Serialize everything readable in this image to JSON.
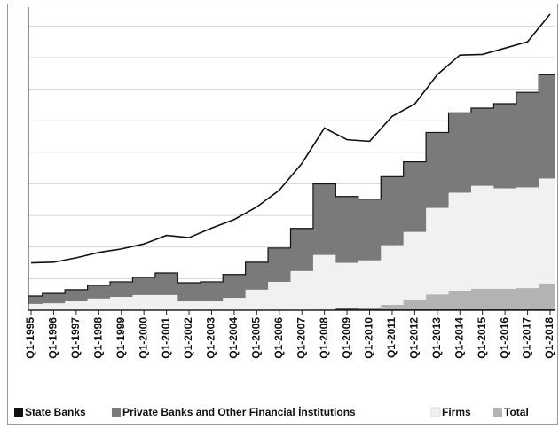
{
  "chart_data": {
    "type": "stacked_step_area",
    "categories": [
      "Q1-1995",
      "Q1-1996",
      "Q1-1997",
      "Q1-1998",
      "Q1-1999",
      "Q1-2000",
      "Q1-2001",
      "Q1-2002",
      "Q1-2003",
      "Q1-2004",
      "Q1-2005",
      "Q1-2006",
      "Q1-2007",
      "Q1-2008",
      "Q1-2009",
      "Q1-2010",
      "Q1-2011",
      "Q1-2012",
      "Q1-2013",
      "Q1-2014",
      "Q1-2015",
      "Q1-2016",
      "Q1-2017",
      "Q1-2018"
    ],
    "series": [
      {
        "name": "State Banks",
        "color": "#111111",
        "values": [
          0,
          0,
          0,
          0,
          0,
          0,
          0,
          0,
          0,
          0,
          0,
          0,
          0,
          0.02,
          0.05,
          0.04,
          0.03,
          0.03,
          0.03,
          0.03,
          0.03,
          0.03,
          0.03,
          0.03
        ]
      },
      {
        "name": "Total",
        "color": "#b3b3b3",
        "values": [
          0,
          0,
          0,
          0,
          0,
          0,
          0,
          0,
          0,
          0,
          0,
          0,
          0,
          0,
          0,
          0.01,
          0.14,
          0.31,
          0.47,
          0.59,
          0.65,
          0.65,
          0.67,
          0.82
        ]
      },
      {
        "name": "Firms",
        "color": "#f1f1f1",
        "values": [
          0.2,
          0.22,
          0.28,
          0.37,
          0.42,
          0.48,
          0.48,
          0.28,
          0.28,
          0.39,
          0.65,
          0.9,
          1.24,
          1.73,
          1.45,
          1.53,
          1.89,
          2.14,
          2.74,
          3.1,
          3.26,
          3.18,
          3.19,
          3.32
        ]
      },
      {
        "name": "Private Banks and Other Financial İnstitutions",
        "color": "#7a7a7a",
        "values": [
          0.25,
          0.31,
          0.37,
          0.42,
          0.48,
          0.56,
          0.7,
          0.59,
          0.62,
          0.74,
          0.87,
          1.07,
          1.35,
          2.25,
          2.1,
          1.94,
          2.17,
          2.22,
          2.39,
          2.53,
          2.46,
          2.68,
          3.01,
          3.29
        ]
      }
    ],
    "outer_line": {
      "color": "#111111",
      "values": [
        1.5,
        1.52,
        1.66,
        1.83,
        1.94,
        2.1,
        2.37,
        2.3,
        2.6,
        2.87,
        3.27,
        3.8,
        4.65,
        5.77,
        5.4,
        5.35,
        6.14,
        6.53,
        7.46,
        8.08,
        8.1,
        8.3,
        8.5,
        9.38
      ]
    },
    "ylim": [
      0,
      9.6
    ],
    "yticks": [
      0,
      1,
      2,
      3,
      4,
      5,
      6,
      7,
      8,
      9
    ],
    "grid": true
  }
}
